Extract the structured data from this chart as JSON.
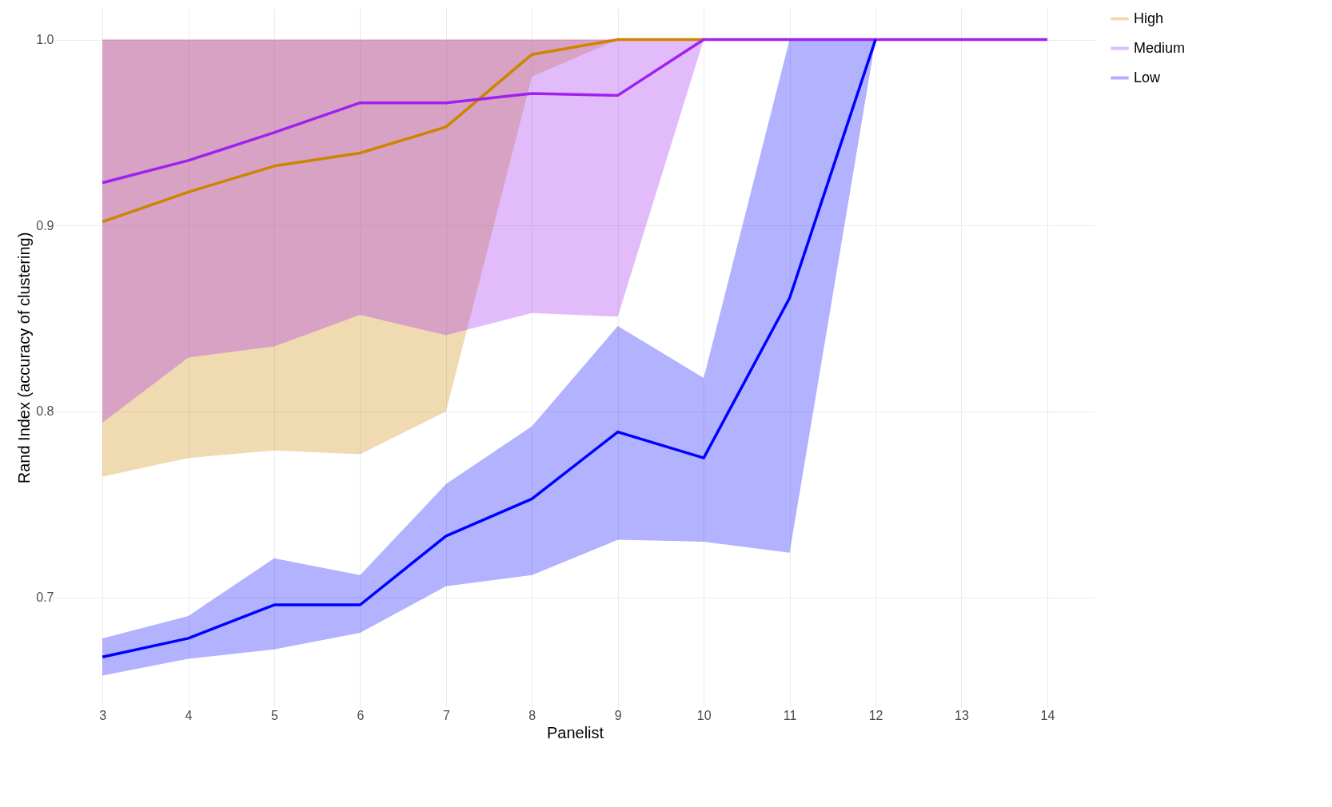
{
  "chart_data": {
    "type": "line",
    "xlabel": "Panelist",
    "ylabel": "Rand Index (accuracy of clustering)",
    "x": [
      3,
      4,
      5,
      6,
      7,
      8,
      9,
      10,
      11,
      12,
      13,
      14
    ],
    "xlim": [
      2.45,
      14.55
    ],
    "xticks": [
      3,
      4,
      5,
      6,
      7,
      8,
      9,
      10,
      11,
      12,
      13,
      14
    ],
    "ylim": [
      0.641,
      1.017
    ],
    "yticks": [
      {
        "value": 0.7,
        "label": "0.7"
      },
      {
        "value": 0.8,
        "label": "0.8"
      },
      {
        "value": 0.9,
        "label": "0.9"
      },
      {
        "value": 1,
        "label": "1.0"
      }
    ],
    "grid": true,
    "legend": "right",
    "series": [
      {
        "name": "High",
        "color": "#cd8500",
        "values": [
          0.902,
          0.918,
          0.932,
          0.939,
          0.953,
          0.992,
          1,
          1,
          null,
          null,
          null,
          null
        ],
        "lower": [
          0.765,
          0.775,
          0.779,
          0.777,
          0.8,
          0.98,
          1,
          1,
          null,
          null,
          null,
          null
        ],
        "upper": [
          1,
          1,
          1,
          1,
          1,
          1,
          1,
          1,
          null,
          null,
          null,
          null
        ]
      },
      {
        "name": "Medium",
        "color": "#a020f0",
        "values": [
          0.923,
          0.935,
          0.95,
          0.966,
          0.966,
          0.971,
          0.97,
          1,
          1,
          1,
          1,
          1
        ],
        "lower": [
          0.794,
          0.829,
          0.835,
          0.852,
          0.841,
          0.853,
          0.851,
          1,
          1,
          1,
          1,
          1
        ],
        "upper": [
          1,
          1,
          1,
          1,
          1,
          1,
          1,
          1,
          1,
          1,
          1,
          1
        ]
      },
      {
        "name": "Low",
        "color": "#0000ff",
        "values": [
          0.668,
          0.678,
          0.696,
          0.696,
          0.733,
          0.753,
          0.789,
          0.775,
          0.861,
          1,
          null,
          null
        ],
        "lower": [
          0.658,
          0.667,
          0.672,
          0.681,
          0.706,
          0.712,
          0.731,
          0.73,
          0.724,
          1,
          null,
          null
        ],
        "upper": [
          0.678,
          0.69,
          0.721,
          0.712,
          0.761,
          0.792,
          0.846,
          0.818,
          1,
          1,
          null,
          null
        ]
      }
    ]
  }
}
